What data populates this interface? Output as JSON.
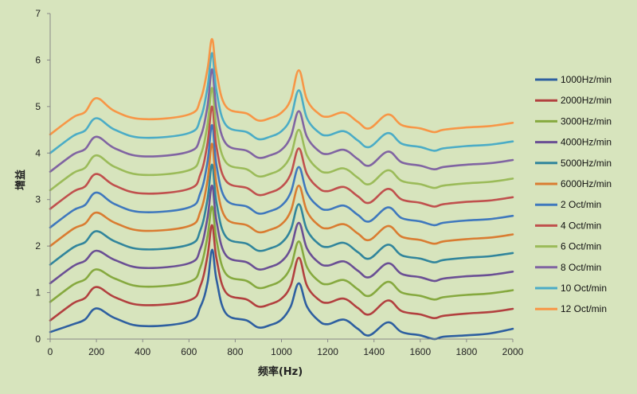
{
  "chart_data": {
    "type": "line",
    "title": "",
    "xlabel": "频率(Hz)",
    "ylabel": "增益",
    "xlim": [
      0,
      2000
    ],
    "ylim": [
      0,
      7
    ],
    "x_ticks": [
      "0",
      "200",
      "400",
      "600",
      "800",
      "1000",
      "1200",
      "1400",
      "1600",
      "1800",
      "2000"
    ],
    "y_ticks": [
      "0",
      "1",
      "2",
      "3",
      "4",
      "5",
      "6",
      "7"
    ],
    "grid": false,
    "legend_position": "right",
    "x": [
      0,
      100,
      150,
      200,
      280,
      400,
      600,
      650,
      680,
      700,
      720,
      760,
      850,
      900,
      950,
      1000,
      1040,
      1075,
      1110,
      1160,
      1200,
      1270,
      1330,
      1380,
      1460,
      1520,
      1600,
      1660,
      1700,
      1800,
      1900,
      2000
    ],
    "series": [
      {
        "name": "1000Hz/min",
        "color": "#2e5fa0",
        "values": [
          0.15,
          0.32,
          0.42,
          0.66,
          0.45,
          0.28,
          0.38,
          0.7,
          1.2,
          1.92,
          1.25,
          0.55,
          0.4,
          0.25,
          0.3,
          0.42,
          0.7,
          1.2,
          0.7,
          0.4,
          0.32,
          0.42,
          0.22,
          0.08,
          0.36,
          0.15,
          0.08,
          0.0,
          0.05,
          0.08,
          0.12,
          0.22
        ]
      },
      {
        "name": "2000Hz/min",
        "color": "#b2403f",
        "values": [
          0.4,
          0.77,
          0.88,
          1.12,
          0.9,
          0.73,
          0.83,
          1.15,
          1.78,
          2.45,
          1.7,
          1.0,
          0.85,
          0.7,
          0.75,
          0.87,
          1.15,
          1.75,
          1.15,
          0.85,
          0.78,
          0.87,
          0.67,
          0.53,
          0.83,
          0.6,
          0.53,
          0.45,
          0.5,
          0.55,
          0.58,
          0.65
        ]
      },
      {
        "name": "3000Hz/min",
        "color": "#86a93f",
        "values": [
          0.8,
          1.17,
          1.28,
          1.5,
          1.3,
          1.13,
          1.23,
          1.55,
          2.2,
          2.85,
          2.1,
          1.4,
          1.25,
          1.1,
          1.15,
          1.27,
          1.55,
          2.1,
          1.55,
          1.25,
          1.18,
          1.27,
          1.07,
          0.93,
          1.23,
          1.0,
          0.93,
          0.85,
          0.9,
          0.95,
          0.98,
          1.05
        ]
      },
      {
        "name": "4000Hz/min",
        "color": "#6a4f94",
        "values": [
          1.2,
          1.57,
          1.68,
          1.9,
          1.7,
          1.53,
          1.63,
          1.95,
          2.6,
          3.3,
          2.5,
          1.8,
          1.65,
          1.5,
          1.55,
          1.67,
          1.95,
          2.5,
          1.95,
          1.65,
          1.58,
          1.67,
          1.47,
          1.33,
          1.63,
          1.4,
          1.33,
          1.25,
          1.3,
          1.35,
          1.38,
          1.45
        ]
      },
      {
        "name": "5000Hz/min",
        "color": "#31859c",
        "values": [
          1.6,
          1.97,
          2.08,
          2.32,
          2.1,
          1.93,
          2.03,
          2.35,
          3.0,
          3.75,
          2.9,
          2.2,
          2.05,
          1.9,
          1.95,
          2.07,
          2.35,
          2.9,
          2.35,
          2.05,
          1.98,
          2.07,
          1.87,
          1.73,
          2.03,
          1.8,
          1.73,
          1.65,
          1.7,
          1.75,
          1.78,
          1.85
        ]
      },
      {
        "name": "6000Hz/min",
        "color": "#d97c31",
        "values": [
          2.0,
          2.37,
          2.48,
          2.72,
          2.5,
          2.33,
          2.43,
          2.75,
          3.4,
          4.2,
          3.3,
          2.6,
          2.45,
          2.3,
          2.35,
          2.47,
          2.75,
          3.3,
          2.75,
          2.45,
          2.38,
          2.47,
          2.27,
          2.13,
          2.43,
          2.2,
          2.13,
          2.05,
          2.1,
          2.15,
          2.18,
          2.25
        ]
      },
      {
        "name": "2 Oct/min",
        "color": "#3f78bd",
        "values": [
          2.4,
          2.77,
          2.88,
          3.15,
          2.9,
          2.73,
          2.83,
          3.15,
          3.8,
          4.6,
          3.7,
          3.0,
          2.85,
          2.7,
          2.75,
          2.87,
          3.15,
          3.7,
          3.15,
          2.85,
          2.78,
          2.87,
          2.67,
          2.53,
          2.83,
          2.6,
          2.53,
          2.45,
          2.5,
          2.55,
          2.58,
          2.65
        ]
      },
      {
        "name": "4 Oct/min",
        "color": "#c0504d",
        "values": [
          2.8,
          3.17,
          3.28,
          3.55,
          3.3,
          3.13,
          3.23,
          3.55,
          4.2,
          5.0,
          4.1,
          3.4,
          3.25,
          3.1,
          3.15,
          3.27,
          3.55,
          4.1,
          3.55,
          3.25,
          3.18,
          3.27,
          3.07,
          2.93,
          3.23,
          3.0,
          2.93,
          2.85,
          2.9,
          2.95,
          2.98,
          3.05
        ]
      },
      {
        "name": "6 Oct/min",
        "color": "#9bbb59",
        "values": [
          3.2,
          3.57,
          3.68,
          3.95,
          3.7,
          3.53,
          3.63,
          3.95,
          4.6,
          5.4,
          4.5,
          3.8,
          3.65,
          3.5,
          3.55,
          3.67,
          3.95,
          4.5,
          3.95,
          3.65,
          3.58,
          3.67,
          3.47,
          3.33,
          3.63,
          3.4,
          3.33,
          3.25,
          3.3,
          3.35,
          3.38,
          3.45
        ]
      },
      {
        "name": "8 Oct/min",
        "color": "#8064a2",
        "values": [
          3.6,
          3.97,
          4.08,
          4.35,
          4.1,
          3.93,
          4.03,
          4.35,
          5.0,
          5.8,
          4.9,
          4.2,
          4.05,
          3.9,
          3.95,
          4.07,
          4.35,
          4.9,
          4.35,
          4.05,
          3.98,
          4.07,
          3.87,
          3.73,
          4.03,
          3.8,
          3.73,
          3.65,
          3.7,
          3.75,
          3.78,
          3.85
        ]
      },
      {
        "name": "10 Oct/min",
        "color": "#4bacc6",
        "values": [
          4.0,
          4.37,
          4.48,
          4.75,
          4.5,
          4.33,
          4.43,
          4.75,
          5.4,
          6.15,
          5.3,
          4.6,
          4.45,
          4.3,
          4.35,
          4.47,
          4.75,
          5.35,
          4.75,
          4.45,
          4.38,
          4.47,
          4.27,
          4.13,
          4.43,
          4.2,
          4.13,
          4.05,
          4.1,
          4.15,
          4.18,
          4.25
        ]
      },
      {
        "name": "12 Oct/min",
        "color": "#f79646",
        "values": [
          4.4,
          4.77,
          4.88,
          5.18,
          4.9,
          4.73,
          4.83,
          5.15,
          5.8,
          6.45,
          5.7,
          5.0,
          4.85,
          4.7,
          4.75,
          4.87,
          5.15,
          5.78,
          5.15,
          4.85,
          4.78,
          4.87,
          4.67,
          4.53,
          4.83,
          4.6,
          4.53,
          4.45,
          4.5,
          4.55,
          4.58,
          4.65
        ]
      }
    ]
  }
}
